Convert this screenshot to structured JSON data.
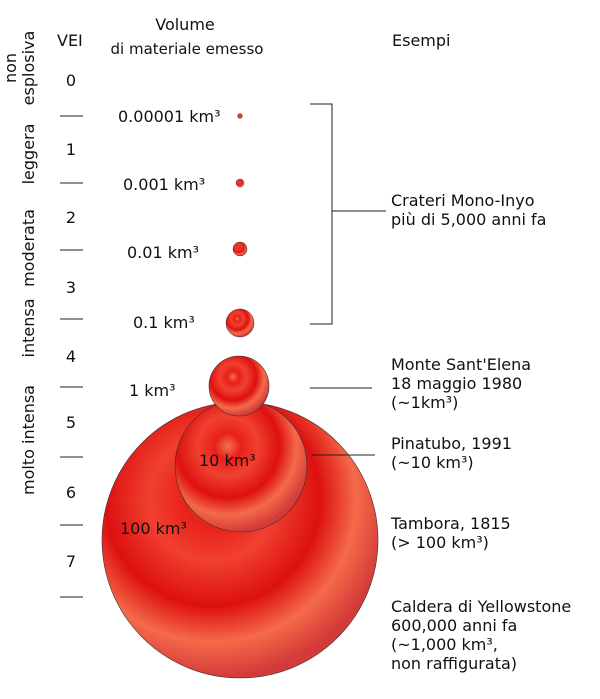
{
  "header": {
    "vei": "VEI",
    "volume": [
      "Volume",
      "di materiale emesso"
    ],
    "examples": "Esempi"
  },
  "vei_levels": [
    "0",
    "1",
    "2",
    "3",
    "4",
    "5",
    "6",
    "7"
  ],
  "categories": {
    "non_explosive": [
      "non",
      "esplosiva"
    ],
    "light": "leggera",
    "moderate": "moderata",
    "intense": "intensa",
    "very_intense": "molto intensa"
  },
  "volumes": [
    "0.00001 km³",
    "0.001 km³",
    "0.01 km³",
    "0.1 km³",
    "1 km³",
    "10 km³",
    "100 km³"
  ],
  "examples": [
    {
      "lines": [
        "Crateri Mono-Inyo",
        "più di 5,000 anni fa"
      ]
    },
    {
      "lines": [
        "Monte Sant'Elena",
        "18 maggio 1980",
        "(~1km³)"
      ]
    },
    {
      "lines": [
        "Pinatubo, 1991",
        "(~10 km³)"
      ]
    },
    {
      "lines": [
        "Tambora, 1815",
        "(> 100 km³)"
      ]
    },
    {
      "lines": [
        "Caldera di Yellowstone",
        "600,000 anni fa",
        "(~1,000 km³,",
        "non raffigurata)"
      ]
    }
  ]
}
